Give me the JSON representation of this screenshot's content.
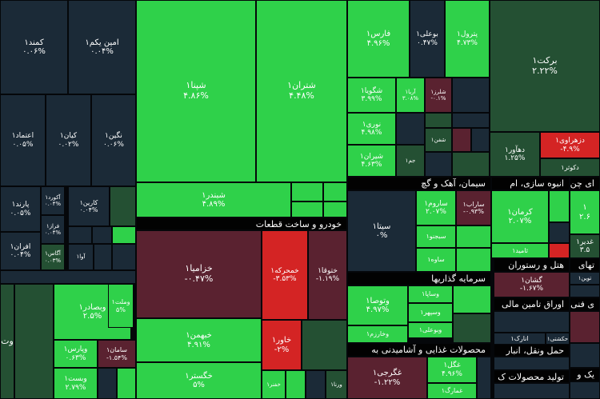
{
  "colors": {
    "dark_navy": "#1b2a37",
    "dark_green": "#245033",
    "green": "#2bb64a",
    "bright_green": "#2fd14a",
    "dark_red": "#5a2230",
    "red": "#d42424",
    "header_bg": "#020202"
  },
  "headers": [
    {
      "id": "auto",
      "label": "خودرو و ساخت قطعات"
    },
    {
      "id": "cement",
      "label": "سیمان، آهک و گچ"
    },
    {
      "id": "massbuild",
      "label": "انبوه سازی، ام"
    },
    {
      "id": "chap",
      "label": "ای چن"
    },
    {
      "id": "invest",
      "label": "سرمایه گذاریها"
    },
    {
      "id": "hotel",
      "label": "هتل و رستوران"
    },
    {
      "id": "amin",
      "label": "اوراق تامین مالی"
    },
    {
      "id": "fanni",
      "label": "ی فنی"
    },
    {
      "id": "food",
      "label": "محصولات غذایی و آشامیدنی به"
    },
    {
      "id": "transport",
      "label": "حمل ونقل، انبار"
    },
    {
      "id": "tolid",
      "label": "تولید محصولات ک"
    },
    {
      "id": "tahe",
      "label": "تهای"
    },
    {
      "id": "yek",
      "label": "یک و"
    }
  ],
  "cells": [
    {
      "id": "kamand",
      "name": "کمند۱",
      "pct": "۰.۰۶%"
    },
    {
      "id": "aminyekom",
      "name": "امین یکم۱",
      "pct": "۰.۰۴%"
    },
    {
      "id": "etemad",
      "name": "اعتماد۱",
      "pct": "۰.۰۵%"
    },
    {
      "id": "kian",
      "name": "کیان۱",
      "pct": "۰.۰۲%"
    },
    {
      "id": "negin",
      "name": "نگین۱",
      "pct": "۰.۰۶%"
    },
    {
      "id": "parand",
      "name": "پارند۱",
      "pct": "۰.۰۵%"
    },
    {
      "id": "akord",
      "name": "آکورد۱",
      "pct": "۰.۰۴%"
    },
    {
      "id": "faraz",
      "name": "فراز۱",
      "pct": "۰.۰۴%"
    },
    {
      "id": "karin",
      "name": "کارین۱",
      "pct": "۰.۰۴%"
    },
    {
      "id": "afran",
      "name": "افران۱",
      "pct": "۰.۰۴%"
    },
    {
      "id": "agas",
      "name": "آگاس۱",
      "pct": "۰.۰۳%"
    },
    {
      "id": "ava",
      "name": "آوا۱",
      "pct": ""
    },
    {
      "id": "shapna",
      "name": "شپنا۱",
      "pct": "۴.۸۶%"
    },
    {
      "id": "shatran",
      "name": "شتران۱",
      "pct": "۴.۴۸%"
    },
    {
      "id": "shabandar",
      "name": "شبندر۱",
      "pct": "۴.۸۹%"
    },
    {
      "id": "fars",
      "name": "فارس۱",
      "pct": "۴.۹۶%"
    },
    {
      "id": "buali",
      "name": "بوعلی۱",
      "pct": "۰.۴۷%"
    },
    {
      "id": "petrol",
      "name": "پترول۱",
      "pct": "۴.۷۳%"
    },
    {
      "id": "barekat",
      "name": "برکت۱",
      "pct": "۲.۲۲%"
    },
    {
      "id": "shegoya",
      "name": "شگویا۱",
      "pct": "۳.۹۹%"
    },
    {
      "id": "arya",
      "name": "آریا۱",
      "pct": "۳.۰۸%"
    },
    {
      "id": "shalarz",
      "name": "شلرز۱",
      "pct": "-۰.۱%"
    },
    {
      "id": "nouri",
      "name": "نوری۱",
      "pct": "۴.۹۸%"
    },
    {
      "id": "shiran",
      "name": "شیران۱",
      "pct": "۴.۶۳%"
    },
    {
      "id": "shafan",
      "name": "شفن۱",
      "pct": ""
    },
    {
      "id": "jam",
      "name": "جم۱",
      "pct": ""
    },
    {
      "id": "dahavar",
      "name": "دهآور۱",
      "pct": "۱.۲۵%"
    },
    {
      "id": "dezahravi",
      "name": "دزهراوی۱",
      "pct": "-۴.۹%"
    },
    {
      "id": "dakotor",
      "name": "دکوثر۱",
      "pct": ""
    },
    {
      "id": "khezamia",
      "name": "خزامیا۱",
      "pct": "-۰.۴۷%"
    },
    {
      "id": "khamkharke",
      "name": "خمحرکه۱",
      "pct": "-۳.۵۳%"
    },
    {
      "id": "khotogha",
      "name": "ختوقا۱",
      "pct": "-۱.۱۹%"
    },
    {
      "id": "khabahman",
      "name": "خبهمن۱",
      "pct": "۴.۹۱%"
    },
    {
      "id": "khavar",
      "name": "خاور۱",
      "pct": "-۲%"
    },
    {
      "id": "khegostar",
      "name": "خگستر۱",
      "pct": "۵%"
    },
    {
      "id": "khafer",
      "name": "خفنر۱",
      "pct": ""
    },
    {
      "id": "vrana",
      "name": "ورنا۱",
      "pct": ""
    },
    {
      "id": "sita",
      "name": "سیتا۱",
      "pct": "۰%"
    },
    {
      "id": "sarum",
      "name": "ساروم۱",
      "pct": "۲.۰۷%"
    },
    {
      "id": "sarab",
      "name": "ساراب۱",
      "pct": "-۰.۹۳%"
    },
    {
      "id": "sabjno",
      "name": "سبجنو۱",
      "pct": ""
    },
    {
      "id": "savah",
      "name": "ساوه۱",
      "pct": ""
    },
    {
      "id": "kerman",
      "name": "کرمان۱",
      "pct": "۲.۰۷%"
    },
    {
      "id": "tamid",
      "name": "ثامید۱",
      "pct": ""
    },
    {
      "id": "vetosa",
      "name": "وتوصا۱",
      "pct": "۴.۹۷%"
    },
    {
      "id": "vsapa",
      "name": "وساپا۱",
      "pct": ""
    },
    {
      "id": "vsepehr",
      "name": "وسپهر۱",
      "pct": ""
    },
    {
      "id": "vbuali",
      "name": "وبوعلی۱",
      "pct": ""
    },
    {
      "id": "vkharazm",
      "name": "وخارزم۱",
      "pct": ""
    },
    {
      "id": "gheghorji",
      "name": "غگرجی۱",
      "pct": "-۱.۲۲%"
    },
    {
      "id": "ghegol",
      "name": "غگل۱",
      "pct": "۴.۹۶%"
    },
    {
      "id": "ghamarg",
      "name": "غمارگ۱",
      "pct": ""
    },
    {
      "id": "geshan",
      "name": "گشان۱",
      "pct": "-۱.۶۷%"
    },
    {
      "id": "anarak",
      "name": "انارک۱",
      "pct": ""
    },
    {
      "id": "hakeshti",
      "name": "حکشتی۱",
      "pct": ""
    },
    {
      "id": "vbsader",
      "name": "وبصادر۱",
      "pct": "۲.۵%"
    },
    {
      "id": "vmellat",
      "name": "وملت۱",
      "pct": "۵%"
    },
    {
      "id": "vparis",
      "name": "وپارس۱",
      "pct": "۰.۶۳%"
    },
    {
      "id": "saman",
      "name": "سامان۱",
      "pct": "-۱.۵۴%"
    },
    {
      "id": "vbist",
      "name": "وبست۱",
      "pct": "۲.۷۹%"
    },
    {
      "id": "vto",
      "name": "وت",
      "pct": ""
    },
    {
      "id": "gaderir",
      "name": "غدیر۱",
      "pct": "۳.۵"
    },
    {
      "id": "right26",
      "name": "۱",
      "pct": "۲.۶"
    },
    {
      "id": "tavin",
      "name": "توین۱",
      "pct": ""
    }
  ]
}
